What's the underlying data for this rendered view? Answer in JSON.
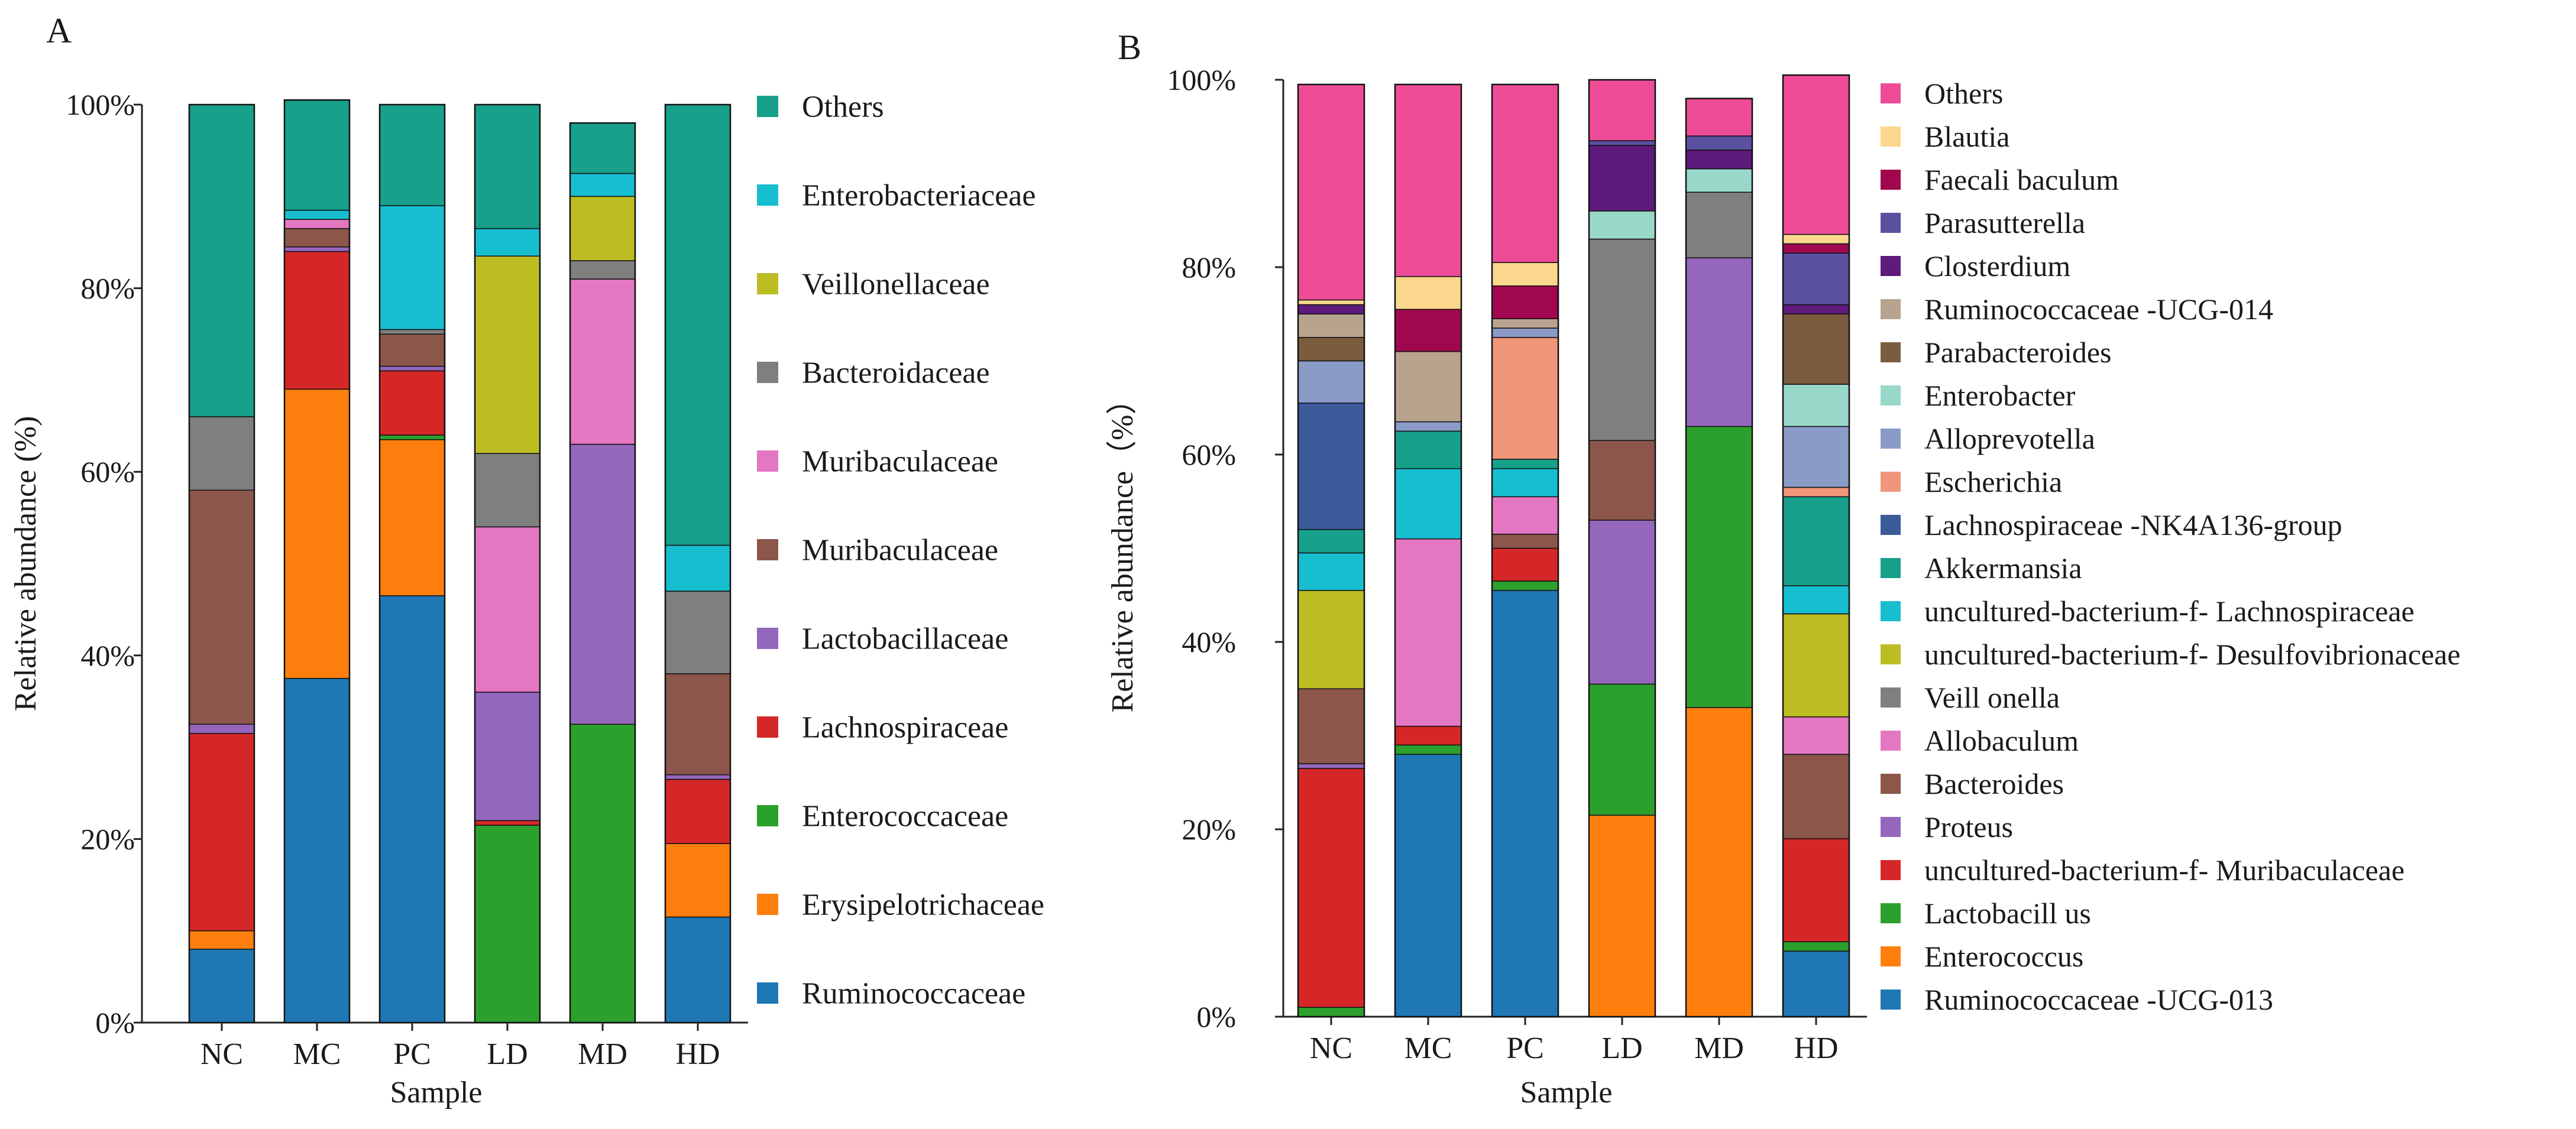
{
  "chart_data": [
    {
      "panel": "A",
      "type": "bar",
      "stacked": true,
      "xlabel": "Sample",
      "ylabel": "Relative abundance (%)",
      "ylim": [
        0,
        100
      ],
      "yticks": [
        "0%",
        "20%",
        "40%",
        "60%",
        "80%",
        "100%"
      ],
      "categories": [
        "NC",
        "MC",
        "PC",
        "LD",
        "MD",
        "HD"
      ],
      "legend_position": "right",
      "series": [
        {
          "name": "Ruminococcaceae",
          "color": "#1F77B4",
          "values": [
            8,
            37.5,
            46.5,
            0,
            0,
            11.5
          ]
        },
        {
          "name": "Erysipelotrichaceae",
          "color": "#FF7F0E",
          "values": [
            2,
            31.5,
            17,
            0,
            0,
            8
          ]
        },
        {
          "name": "Enterococcaceae",
          "color": "#2CA02C",
          "values": [
            0,
            0,
            0.5,
            21.5,
            32.5,
            0
          ]
        },
        {
          "name": "Lachnospiraceae",
          "color": "#D62728",
          "values": [
            21.5,
            15,
            7,
            0.5,
            0,
            7
          ]
        },
        {
          "name": "Lactobacillaceae",
          "color": "#9467BD",
          "values": [
            1,
            0.5,
            0.5,
            14,
            30.5,
            0.5
          ]
        },
        {
          "name": "Muribaculaceae",
          "color": "#8C564B",
          "values": [
            25.5,
            2,
            3.5,
            0,
            0,
            11
          ]
        },
        {
          "name": "Muribaculaceae",
          "color": "#E377C2",
          "values": [
            0,
            1,
            0,
            18,
            18,
            0
          ]
        },
        {
          "name": "Bacteroidaceae",
          "color": "#7F7F7F",
          "values": [
            8,
            0,
            0.5,
            8,
            2,
            9
          ]
        },
        {
          "name": "Veillonellaceae",
          "color": "#BCBD22",
          "values": [
            0,
            0,
            0,
            21.5,
            7,
            0
          ]
        },
        {
          "name": "Enterobacteriaceae",
          "color": "#17BECF",
          "values": [
            0,
            1,
            13.5,
            3,
            2.5,
            5
          ]
        },
        {
          "name": "Others",
          "color": "#17A08A",
          "values": [
            34,
            12,
            11,
            13.5,
            5.5,
            48
          ]
        }
      ]
    },
    {
      "panel": "B",
      "type": "bar",
      "stacked": true,
      "xlabel": "Sample",
      "ylabel": "Relative abundance（%）",
      "ylim": [
        0,
        100
      ],
      "yticks": [
        "0%",
        "20%",
        "40%",
        "60%",
        "80%",
        "100%"
      ],
      "categories": [
        "NC",
        "MC",
        "PC",
        "LD",
        "MD",
        "HD"
      ],
      "legend_position": "right",
      "series": [
        {
          "name": "Ruminococcaceae -UCG-013",
          "color": "#1F77B4",
          "values": [
            0,
            28,
            45.5,
            0,
            0,
            7
          ]
        },
        {
          "name": "Enterococcus",
          "color": "#FF7F0E",
          "values": [
            0,
            0,
            0,
            21.5,
            33,
            0
          ]
        },
        {
          "name": "Lactobacill us",
          "color": "#2CA02C",
          "values": [
            1,
            1,
            1,
            14,
            30,
            1
          ]
        },
        {
          "name": "uncultured-bacterium-f- Muribaculaceae",
          "color": "#D62728",
          "values": [
            25.5,
            2,
            3.5,
            0,
            0,
            11
          ]
        },
        {
          "name": "Proteus",
          "color": "#9467BD",
          "values": [
            0.5,
            0,
            0,
            17.5,
            18,
            0
          ]
        },
        {
          "name": "Bacteroides",
          "color": "#8C564B",
          "values": [
            8,
            0,
            1.5,
            8.5,
            0,
            9
          ]
        },
        {
          "name": "Allobaculum",
          "color": "#E377C2",
          "values": [
            0,
            20,
            4,
            0,
            0,
            4
          ]
        },
        {
          "name": "Veill onella",
          "color": "#7F7F7F",
          "values": [
            0,
            0,
            0,
            21.5,
            7,
            0
          ]
        },
        {
          "name": "uncultured-bacterium-f- Desulfovibrionaceae",
          "color": "#BCBD22",
          "values": [
            10.5,
            0,
            0,
            0,
            0,
            11
          ]
        },
        {
          "name": "uncultured-bacterium-f- Lachnospiraceae",
          "color": "#17BECF",
          "values": [
            4,
            7.5,
            3,
            0,
            0,
            3
          ]
        },
        {
          "name": "Akkermansia",
          "color": "#17A08A",
          "values": [
            2.5,
            4,
            1,
            0,
            0,
            9.5
          ]
        },
        {
          "name": "Lachnospiraceae -NK4A136-group",
          "color": "#3A5A9A",
          "values": [
            13.5,
            0,
            0,
            0,
            0,
            0
          ]
        },
        {
          "name": "Escherichia",
          "color": "#F0967A",
          "values": [
            0,
            0,
            13,
            0,
            0,
            1
          ]
        },
        {
          "name": "Alloprevotella",
          "color": "#8A9BC8",
          "values": [
            4.5,
            1,
            1,
            0,
            0,
            6.5
          ]
        },
        {
          "name": "Enterobacter",
          "color": "#99D8C9",
          "values": [
            0,
            0,
            0,
            3,
            2.5,
            4.5
          ]
        },
        {
          "name": "Parabacteroides",
          "color": "#7A5C3E",
          "values": [
            2.5,
            0,
            0,
            0,
            0,
            7.5
          ]
        },
        {
          "name": "Ruminococcaceae -UCG-014",
          "color": "#B8A38F",
          "values": [
            2.5,
            7.5,
            1,
            0,
            0,
            0
          ]
        },
        {
          "name": "Closterdium",
          "color": "#5E1A7C",
          "values": [
            1,
            0,
            0,
            7,
            2,
            1
          ]
        },
        {
          "name": "Parasutterella",
          "color": "#5A50A0",
          "values": [
            0,
            0,
            0,
            0.5,
            1.5,
            5.5
          ]
        },
        {
          "name": "Faecali baculum",
          "color": "#A0074F",
          "values": [
            0,
            4.5,
            3.5,
            0,
            0,
            1
          ]
        },
        {
          "name": "Blautia",
          "color": "#FAD78C",
          "values": [
            0.5,
            3.5,
            2.5,
            0,
            0,
            1
          ]
        },
        {
          "name": "Others",
          "color": "#EE4C97",
          "values": [
            23,
            20.5,
            19,
            6.5,
            4,
            17
          ]
        }
      ]
    }
  ],
  "panel_labels": {
    "a": "A",
    "b": "B"
  }
}
